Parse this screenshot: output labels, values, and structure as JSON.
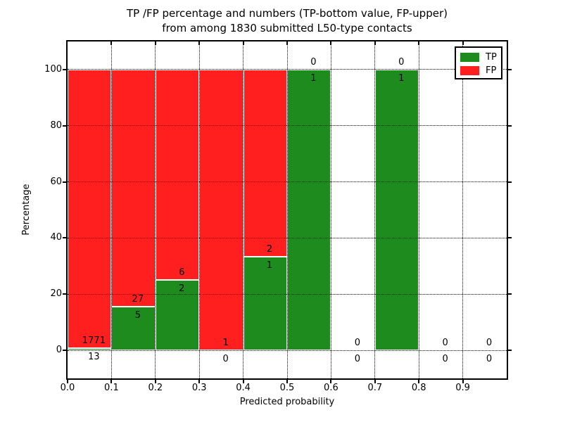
{
  "chart_data": {
    "type": "bar",
    "stacked": true,
    "title_line1": "TP /FP percentage and numbers (TP-bottom value, FP-upper)",
    "title_line2": "from among 1830 submitted L50-type contacts",
    "xlabel": "Predicted probability",
    "ylabel": "Percentage",
    "xlim": [
      0.0,
      1.0
    ],
    "ylim": [
      -10,
      110
    ],
    "x_ticks": [
      "0.0",
      "0.1",
      "0.2",
      "0.3",
      "0.4",
      "0.5",
      "0.6",
      "0.7",
      "0.8",
      "0.9"
    ],
    "y_ticks": [
      0,
      20,
      40,
      60,
      80,
      100
    ],
    "grid": "dotted",
    "legend_position": "upper right",
    "bins": [
      {
        "range": [
          0.0,
          0.1
        ],
        "tp": 13,
        "fp": 1771
      },
      {
        "range": [
          0.1,
          0.2
        ],
        "tp": 5,
        "fp": 27
      },
      {
        "range": [
          0.2,
          0.3
        ],
        "tp": 2,
        "fp": 6
      },
      {
        "range": [
          0.3,
          0.4
        ],
        "tp": 0,
        "fp": 1
      },
      {
        "range": [
          0.4,
          0.5
        ],
        "tp": 1,
        "fp": 2
      },
      {
        "range": [
          0.5,
          0.6
        ],
        "tp": 1,
        "fp": 0
      },
      {
        "range": [
          0.6,
          0.7
        ],
        "tp": 0,
        "fp": 0
      },
      {
        "range": [
          0.7,
          0.8
        ],
        "tp": 1,
        "fp": 0
      },
      {
        "range": [
          0.8,
          0.9
        ],
        "tp": 0,
        "fp": 0
      },
      {
        "range": [
          0.9,
          1.0
        ],
        "tp": 0,
        "fp": 0
      }
    ],
    "colors": {
      "tp": "#1e8b1e",
      "fp": "#ff1f1f"
    },
    "legend": [
      {
        "label": "TP",
        "color": "#1e8b1e"
      },
      {
        "label": "FP",
        "color": "#ff1f1f"
      }
    ]
  }
}
